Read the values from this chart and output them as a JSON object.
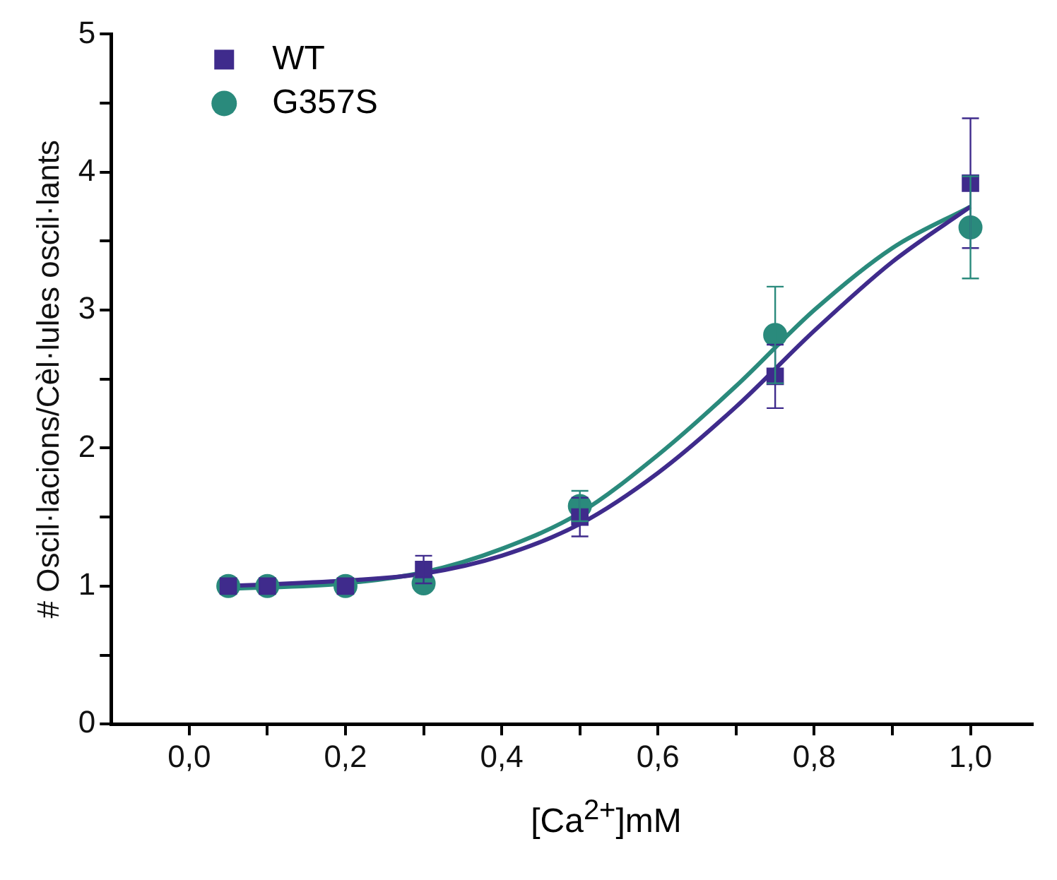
{
  "chart_data": {
    "type": "scatter",
    "xlabel": "[Ca$^{2+}$]mM",
    "ylabel": "# Oscil·lacions/Cèl·lules oscil·lants",
    "xlim": [
      -0.1,
      1.08
    ],
    "xticks": [
      {
        "value": 0,
        "label": "0,0"
      },
      {
        "value": 0.1,
        "label": null
      },
      {
        "value": 0.2,
        "label": "0,2"
      },
      {
        "value": 0.3,
        "label": null
      },
      {
        "value": 0.4,
        "label": "0,4"
      },
      {
        "value": 0.5,
        "label": null
      },
      {
        "value": 0.6,
        "label": "0,6"
      },
      {
        "value": 0.7,
        "label": null
      },
      {
        "value": 0.8,
        "label": "0,8"
      },
      {
        "value": 0.9,
        "label": null
      },
      {
        "value": 1.0,
        "label": "1,0"
      }
    ],
    "ylim": [
      0,
      5
    ],
    "yticks": [
      0,
      {
        "value": 0.5,
        "label": null
      },
      1,
      {
        "value": 1.5,
        "label": null
      },
      2,
      {
        "value": 2.5,
        "label": null
      },
      3,
      {
        "value": 3.5,
        "label": null
      },
      4,
      {
        "value": 4.5,
        "label": null
      },
      5
    ],
    "grid": false,
    "legend": "top left",
    "series": [
      {
        "name": "WT",
        "type": "scatter",
        "marker": "square",
        "color": "#3f2b8c",
        "x": [
          0.05,
          0.1,
          0.2,
          0.3,
          0.5,
          0.75,
          1.0
        ],
        "values": [
          1.0,
          1.0,
          1.0,
          1.12,
          1.5,
          2.52,
          3.92
        ],
        "errors": [
          null,
          null,
          null,
          0.1,
          0.14,
          0.23,
          0.47
        ]
      },
      {
        "name": "G357S",
        "type": "scatter",
        "marker": "circle",
        "color": "#2a8a7c",
        "x": [
          0.05,
          0.1,
          0.2,
          0.3,
          0.5,
          0.75,
          1.0
        ],
        "values": [
          1.0,
          1.0,
          1.0,
          1.02,
          1.58,
          2.82,
          3.6
        ],
        "errors": [
          null,
          null,
          null,
          null,
          0.11,
          0.35,
          0.37
        ]
      },
      {
        "type": "line",
        "marker": "none",
        "color": "#3f2b8c",
        "x": [
          0.05,
          0.2,
          0.3,
          0.4,
          0.5,
          0.6,
          0.7,
          0.8,
          0.9,
          1.0
        ],
        "values": [
          1.0,
          1.04,
          1.09,
          1.22,
          1.45,
          1.82,
          2.3,
          2.85,
          3.35,
          3.75
        ]
      },
      {
        "type": "line",
        "marker": "none",
        "color": "#2a8a7c",
        "x": [
          0.05,
          0.2,
          0.3,
          0.4,
          0.5,
          0.6,
          0.7,
          0.8,
          0.9,
          1.0
        ],
        "values": [
          0.98,
          1.02,
          1.1,
          1.27,
          1.53,
          1.95,
          2.45,
          3.0,
          3.45,
          3.75
        ]
      }
    ]
  }
}
